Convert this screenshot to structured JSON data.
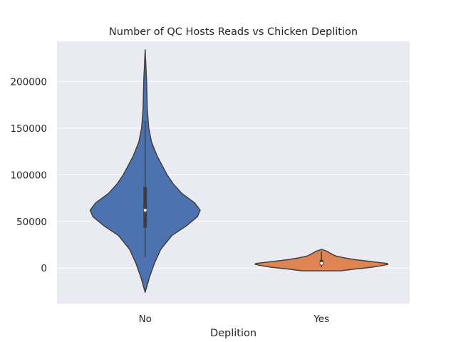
{
  "colors": {
    "background": "#eaeaf2",
    "grid": "#ffffff",
    "outline": "#3f3f3f",
    "text": "#262626",
    "no": "#4c72b0",
    "yes": "#dd8452",
    "median_dot": "#ffffff"
  },
  "chart_data": {
    "type": "violin",
    "title": "Number of QC Hosts Reads vs Chicken Deplition",
    "xlabel": "Deplition",
    "ylabel": "",
    "categories": [
      "No",
      "Yes"
    ],
    "ylim": [
      -38000,
      243000
    ],
    "yticks": [
      0,
      50000,
      100000,
      150000,
      200000
    ],
    "ytick_labels": [
      "0",
      "50000",
      "100000",
      "150000",
      "200000"
    ],
    "grid": true,
    "violins": [
      {
        "category": "No",
        "color": "#4c72b0",
        "min": -26000,
        "max": 234000,
        "q1": 43000,
        "median": 62000,
        "q3": 87000,
        "whisker_low": 12000,
        "whisker_high": 158000,
        "profile": [
          [
            -26000,
            0.0
          ],
          [
            -10000,
            0.06
          ],
          [
            5000,
            0.13
          ],
          [
            20000,
            0.22
          ],
          [
            35000,
            0.38
          ],
          [
            45000,
            0.58
          ],
          [
            55000,
            0.74
          ],
          [
            62000,
            0.78
          ],
          [
            70000,
            0.7
          ],
          [
            80000,
            0.52
          ],
          [
            90000,
            0.4
          ],
          [
            100000,
            0.31
          ],
          [
            110000,
            0.24
          ],
          [
            120000,
            0.17
          ],
          [
            135000,
            0.09
          ],
          [
            150000,
            0.05
          ],
          [
            170000,
            0.03
          ],
          [
            200000,
            0.02
          ],
          [
            234000,
            0.0
          ]
        ]
      },
      {
        "category": "Yes",
        "color": "#dd8452",
        "min": -3000,
        "max": 20000,
        "q1": 3000,
        "median": 5000,
        "q3": 9000,
        "whisker_low": 1000,
        "whisker_high": 18000,
        "profile": [
          [
            -3000,
            0.27
          ],
          [
            -1000,
            0.48
          ],
          [
            1000,
            0.73
          ],
          [
            3000,
            0.88
          ],
          [
            4000,
            0.94
          ],
          [
            5000,
            0.93
          ],
          [
            7000,
            0.7
          ],
          [
            9000,
            0.48
          ],
          [
            11000,
            0.32
          ],
          [
            13000,
            0.2
          ],
          [
            16000,
            0.12
          ],
          [
            18000,
            0.08
          ],
          [
            20000,
            0.0
          ]
        ]
      }
    ]
  }
}
